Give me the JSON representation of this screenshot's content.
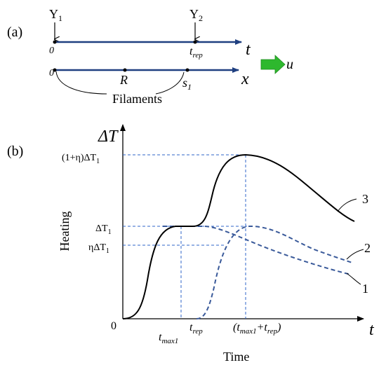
{
  "panel_a": {
    "label": "(a)",
    "y1_label": "Y",
    "y1_sub": "1",
    "y2_label": "Y",
    "y2_sub": "2",
    "t_axis_origin": "0",
    "t_rep_main": "t",
    "t_rep_sub": "rep",
    "t_axis_label": "t",
    "x_axis_origin": "0",
    "r_label": "R",
    "s1_main": "s",
    "s1_sub": "1",
    "x_axis_label": "x",
    "u_label": "u",
    "filaments_label": "Filaments",
    "arrow_color": "#2eb82e"
  },
  "panel_b": {
    "label": "(b)",
    "y_axis_symbol": "ΔT",
    "x_axis_symbol": "t",
    "y_axis_title": "Heating",
    "x_axis_title": "Time",
    "origin_label": "0",
    "tick_peak_paren": "(1+η)ΔT",
    "tick_peak_sub": "1",
    "tick_dt1_main": "ΔT",
    "tick_dt1_sub": "1",
    "tick_eta_main": "ηΔT",
    "tick_eta_sub": "1",
    "tick_tmax1_main": "t",
    "tick_tmax1_sub": "max1",
    "tick_trep_main": "t",
    "tick_trep_sub": "rep",
    "tick_sum_open": "(t",
    "tick_sum_sub1": "max1",
    "tick_sum_plus": "+t",
    "tick_sum_sub2": "rep",
    "tick_sum_close": ")",
    "curve1_label": "1",
    "curve2_label": "2",
    "curve3_label": "3",
    "solid_color": "#000000",
    "dashed_color": "#3a5a9a",
    "guide_color": "#2f66c8"
  }
}
